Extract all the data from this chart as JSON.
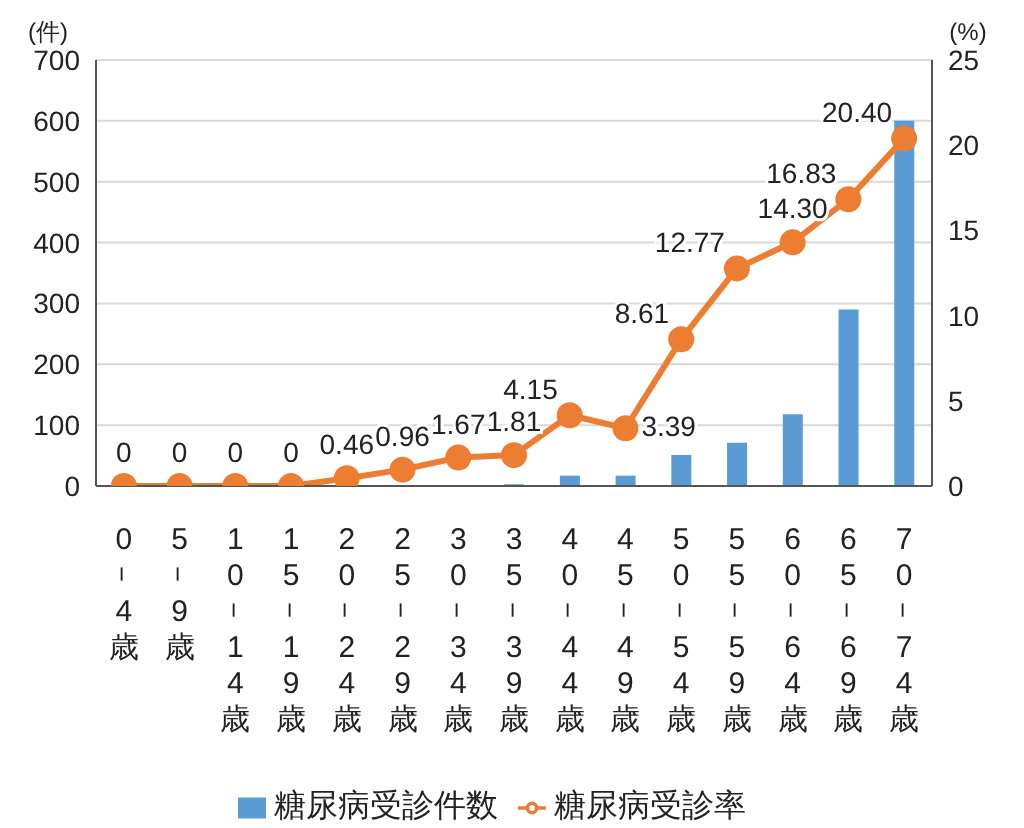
{
  "chart_data": {
    "type": "bar",
    "ylabel": "(件)",
    "y2label": "(%)",
    "categories": [
      "0－4歳",
      "5－9歳",
      "10－14歳",
      "15－19歳",
      "20－24歳",
      "25－29歳",
      "30－34歳",
      "35－39歳",
      "40－44歳",
      "45－49歳",
      "50－54歳",
      "55－59歳",
      "60－64歳",
      "65－69歳",
      "70－74歳"
    ],
    "series": [
      {
        "name": "糖尿病受診件数",
        "axis": "y",
        "color": "#5b9bd5",
        "values": [
          0,
          0,
          0,
          0,
          0,
          0,
          null,
          3,
          17,
          17,
          51,
          71,
          118,
          290,
          600
        ]
      },
      {
        "name": "糖尿病受診率",
        "type": "line",
        "axis": "y2",
        "color": "#ed7d31",
        "marker": "circle",
        "values": [
          0,
          0,
          0,
          0,
          0.46,
          0.96,
          1.67,
          1.81,
          4.15,
          3.39,
          8.61,
          12.77,
          14.3,
          16.83,
          20.4
        ],
        "value_labels": [
          "0",
          "0",
          "0",
          "0",
          "0.46",
          "0.96",
          "1.67",
          "1.81",
          "4.15",
          "3.39",
          "8.61",
          "12.77",
          "14.30",
          "16.83",
          "20.40"
        ]
      }
    ],
    "ylim": [
      0,
      700
    ],
    "yticks": [
      0,
      100,
      200,
      300,
      400,
      500,
      600,
      700
    ],
    "y2lim": [
      0,
      25
    ],
    "y2ticks": [
      0,
      5,
      10,
      15,
      20,
      25
    ],
    "grid": "y",
    "legend": "bottom"
  }
}
